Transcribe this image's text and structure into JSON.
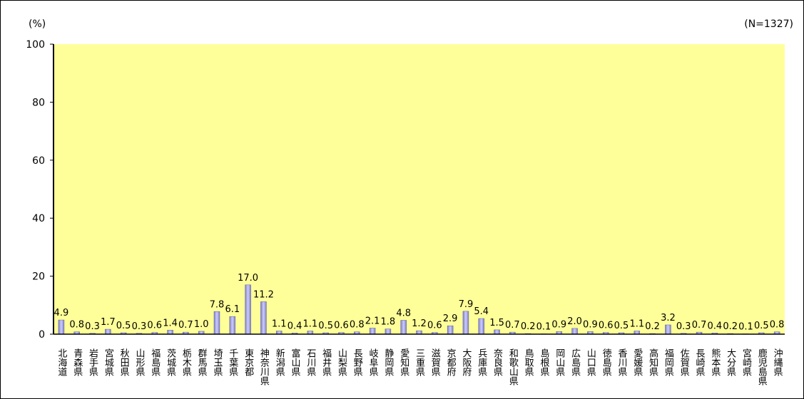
{
  "chart_data": {
    "type": "bar",
    "y_unit": "(%)",
    "note": "(N=1327)",
    "categories": [
      "北海道",
      "青森県",
      "岩手県",
      "宮城県",
      "秋田県",
      "山形県",
      "福島県",
      "茨城県",
      "栃木県",
      "群馬県",
      "埼玉県",
      "千葉県",
      "東京都",
      "神奈川県",
      "新潟県",
      "富山県",
      "石川県",
      "福井県",
      "山梨県",
      "長野県",
      "岐阜県",
      "静岡県",
      "愛知県",
      "三重県",
      "滋賀県",
      "京都府",
      "大阪府",
      "兵庫県",
      "奈良県",
      "和歌山県",
      "鳥取県",
      "島根県",
      "岡山県",
      "広島県",
      "山口県",
      "徳島県",
      "香川県",
      "愛媛県",
      "高知県",
      "福岡県",
      "佐賀県",
      "長崎県",
      "熊本県",
      "大分県",
      "宮崎県",
      "鹿児島県",
      "沖縄県"
    ],
    "values": [
      4.9,
      0.8,
      0.3,
      1.7,
      0.5,
      0.3,
      0.6,
      1.4,
      0.7,
      1.0,
      7.8,
      6.1,
      17.0,
      11.2,
      1.1,
      0.4,
      1.1,
      0.5,
      0.6,
      0.8,
      2.1,
      1.8,
      4.8,
      1.2,
      0.6,
      2.9,
      7.9,
      5.4,
      1.5,
      0.7,
      0.2,
      0.1,
      0.9,
      2.0,
      0.9,
      0.6,
      0.5,
      1.1,
      0.2,
      3.2,
      0.3,
      0.7,
      0.4,
      0.2,
      0.1,
      0.5,
      0.8
    ],
    "value_labels": [
      "4.9",
      "0.8",
      "0.3",
      "1.7",
      "0.5",
      "0.3",
      "0.6",
      "1.4",
      "0.7",
      "1.0",
      "7.8",
      "6.1",
      "17.0",
      "11.2",
      "1.1",
      "0.4",
      "1.1",
      "0.5",
      "0.6",
      "0.8",
      "2.1",
      "1.8",
      "4.8",
      "1.2",
      "0.6",
      "2.9",
      "7.9",
      "5.4",
      "1.5",
      "0.7",
      "0.2",
      "0.1",
      "0.9",
      "2.0",
      "0.9",
      "0.6",
      "0.5",
      "1.1",
      "0.2",
      "3.2",
      "0.3",
      "0.7",
      "0.4",
      "0.2",
      "0.1",
      "0.5",
      "0.8"
    ],
    "color": "#ccccff",
    "plot_background": "#ffff99",
    "ylim": [
      0,
      100
    ],
    "yticks": [
      0,
      20,
      40,
      60,
      80,
      100
    ],
    "grid": false
  }
}
